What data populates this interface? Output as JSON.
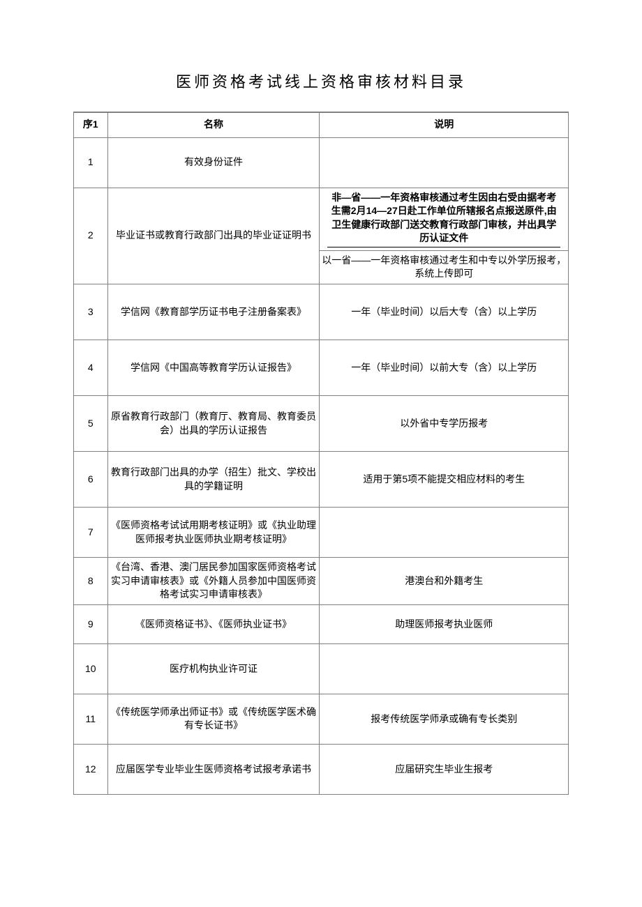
{
  "title": "医师资格考试线上资格审核材料目录",
  "headers": {
    "seq": "序1",
    "name": "名称",
    "desc": "说明"
  },
  "rows": {
    "r1": {
      "seq": "1",
      "name": "有效身份证件",
      "desc": ""
    },
    "r2": {
      "seq": "2",
      "name": "毕业证书或教育行政部门出具的毕业证证明书",
      "desc_a": "非—省——一年资格审核通过考生因由右受由据考考生需2月14—27日赴工作单位所辖报名点报送原件,由卫生健康行政部门送交教育行政部门审核，并出具学历认证文件",
      "desc_b": "以一省——一年资格审核通过考生和中专以外学历报考，系统上传即可"
    },
    "r3": {
      "seq": "3",
      "name": "学信网《教育部学历证书电子注册备案表》",
      "desc": "一年（毕业时间）以后大专（含）以上学历"
    },
    "r4": {
      "seq": "4",
      "name": "学信网《中国高等教育学历认证报告》",
      "desc": "一年（毕业时间）以前大专（含）以上学历"
    },
    "r5": {
      "seq": "5",
      "name": "原省教育行政部门（教育厅、教育局、教育委员会）出具的学历认证报告",
      "desc": "以外省中专学历报考"
    },
    "r6": {
      "seq": "6",
      "name": "教育行政部门出具的办学（招生）批文、学校出具的学籍证明",
      "desc": "适用于第5项不能提交相应材料的考生"
    },
    "r7": {
      "seq": "7",
      "name": "《医师资格考试试用期考核证明》或《执业助理医师报考执业医师执业期考核证明》",
      "desc": ""
    },
    "r8": {
      "seq": "8",
      "name": "《台湾、香港、澳门居民参加国家医师资格考试实习申请审核表》或《外籍人员参加中国医师资格考试实习申请审核表》",
      "desc": "港澳台和外籍考生"
    },
    "r9": {
      "seq": "9",
      "name": "《医师资格证书》、《医师执业证书》",
      "desc": "助理医师报考执业医师"
    },
    "r10": {
      "seq": "10",
      "name": "医疗机构执业许可证",
      "desc": ""
    },
    "r11": {
      "seq": "11",
      "name": "《传统医学师承出师证书》或《传统医学医术确有专长证书》",
      "desc": "报考传统医学师承或确有专长类别"
    },
    "r12": {
      "seq": "12",
      "name": "应届医学专业毕业生医师资格考试报考承诺书",
      "desc": "应届研究生毕业生报考"
    }
  }
}
